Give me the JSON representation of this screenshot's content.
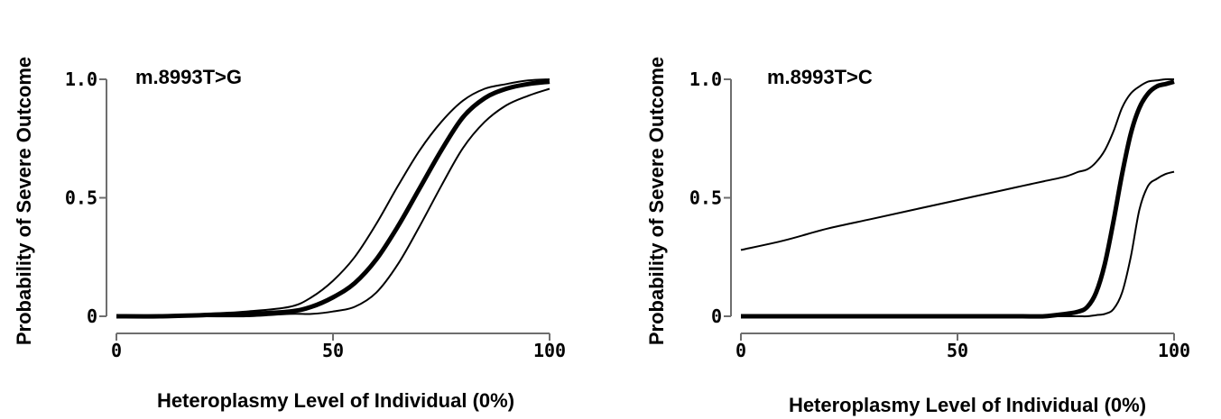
{
  "chart_data": [
    {
      "type": "line",
      "title": "m.8993T>G",
      "xlabel": "Heteroplasmy Level of Individual (0%)",
      "ylabel": "Probability of Severe Outcome",
      "xlim": [
        0,
        100
      ],
      "ylim": [
        0,
        1
      ],
      "xticks": [
        "0",
        "50",
        "100"
      ],
      "yticks": [
        "0",
        "0.5",
        "1.0"
      ],
      "x": [
        0,
        10,
        20,
        30,
        40,
        45,
        50,
        55,
        60,
        65,
        70,
        75,
        80,
        85,
        90,
        95,
        100
      ],
      "series": [
        {
          "values": [
            0,
            0,
            0.01,
            0.02,
            0.04,
            0.08,
            0.15,
            0.25,
            0.39,
            0.55,
            0.7,
            0.82,
            0.91,
            0.96,
            0.98,
            0.995,
            1.0
          ]
        },
        {
          "values": [
            0,
            0,
            0.005,
            0.01,
            0.02,
            0.04,
            0.08,
            0.14,
            0.24,
            0.38,
            0.54,
            0.7,
            0.84,
            0.92,
            0.96,
            0.98,
            0.99
          ]
        },
        {
          "values": [
            0,
            0,
            0,
            0,
            0.01,
            0.01,
            0.02,
            0.04,
            0.1,
            0.22,
            0.38,
            0.55,
            0.71,
            0.82,
            0.89,
            0.93,
            0.96
          ]
        }
      ],
      "grid": false
    },
    {
      "type": "line",
      "title": "m.8993T>C",
      "xlabel": "Heteroplasmy Level of Individual (0%)",
      "ylabel": "Probability of Severe Outcome",
      "xlim": [
        0,
        100
      ],
      "ylim": [
        0,
        1
      ],
      "xticks": [
        "0",
        "50",
        "100"
      ],
      "yticks": [
        "0",
        "0.5",
        "1.0"
      ],
      "x": [
        0,
        10,
        20,
        30,
        40,
        50,
        60,
        65,
        70,
        75,
        78,
        80,
        82,
        84,
        86,
        88,
        90,
        92,
        94,
        96,
        98,
        100
      ],
      "series": [
        {
          "values": [
            0.28,
            0.32,
            0.37,
            0.41,
            0.45,
            0.49,
            0.53,
            0.55,
            0.57,
            0.59,
            0.61,
            0.62,
            0.65,
            0.7,
            0.78,
            0.88,
            0.94,
            0.97,
            0.99,
            0.995,
            1.0,
            1.0
          ]
        },
        {
          "values": [
            0,
            0,
            0,
            0,
            0,
            0,
            0,
            0,
            0,
            0.01,
            0.02,
            0.04,
            0.1,
            0.22,
            0.4,
            0.6,
            0.77,
            0.88,
            0.94,
            0.97,
            0.98,
            0.99
          ]
        },
        {
          "values": [
            0,
            0,
            0,
            0,
            0,
            0,
            0,
            0,
            0,
            0,
            0,
            0,
            0.005,
            0.01,
            0.03,
            0.1,
            0.25,
            0.45,
            0.55,
            0.58,
            0.6,
            0.61
          ]
        }
      ],
      "grid": false
    }
  ]
}
